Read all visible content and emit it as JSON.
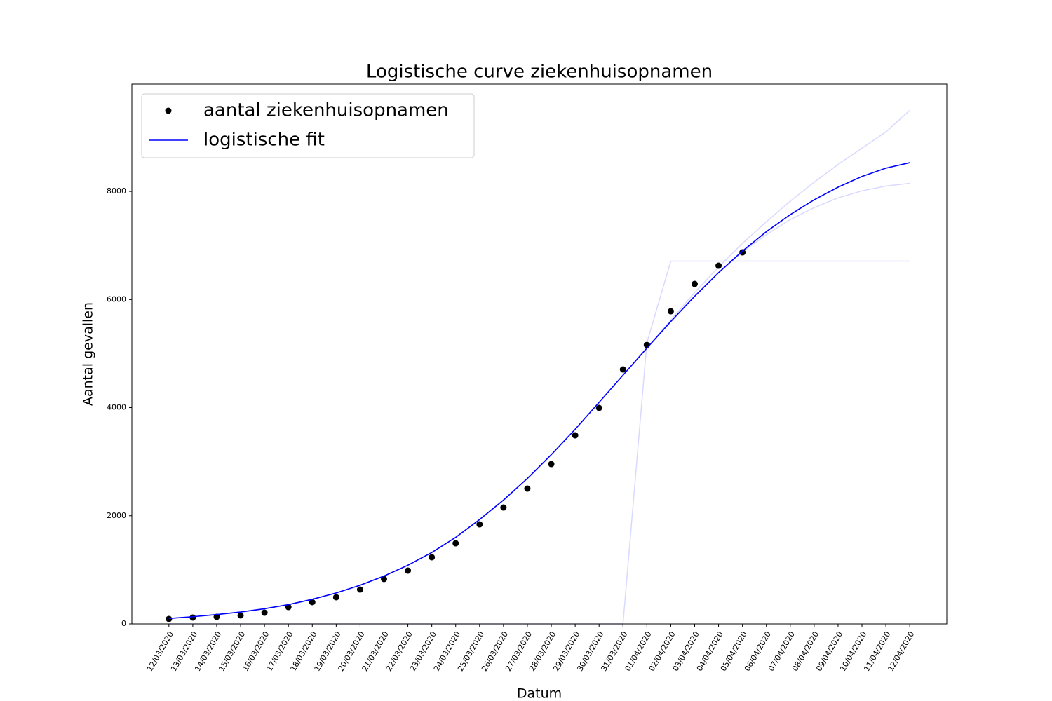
{
  "chart_data": {
    "type": "line",
    "title": "Logistische curve ziekenhuisopnamen",
    "xlabel": "Datum",
    "ylabel": "Aantal gevallen",
    "categories": [
      "12/03/2020",
      "13/03/2020",
      "14/03/2020",
      "15/03/2020",
      "16/03/2020",
      "17/03/2020",
      "18/03/2020",
      "19/03/2020",
      "20/03/2020",
      "21/03/2020",
      "22/03/2020",
      "23/03/2020",
      "24/03/2020",
      "25/03/2020",
      "26/03/2020",
      "27/03/2020",
      "28/03/2020",
      "29/03/2020",
      "30/03/2020",
      "31/03/2020",
      "01/04/2020",
      "02/04/2020",
      "03/04/2020",
      "04/04/2020",
      "05/04/2020",
      "06/04/2020",
      "07/04/2020",
      "08/04/2020",
      "09/04/2020",
      "10/04/2020",
      "11/04/2020",
      "12/04/2020"
    ],
    "series": [
      {
        "name": "aantal ziekenhuisopnamen",
        "color": "#000000",
        "marker": "o",
        "values": [
          91,
          117,
          130,
          156,
          207,
          311,
          402,
          493,
          635,
          830,
          985,
          1232,
          1491,
          1841,
          2152,
          2502,
          2956,
          3488,
          3994,
          4707,
          5160,
          5783,
          6289,
          6626,
          6872,
          null,
          null,
          null,
          null,
          null,
          null,
          null
        ]
      },
      {
        "name": "logistische fit",
        "color": "#0000ff",
        "marker": "line",
        "values": [
          100,
          133,
          173,
          220,
          280,
          356,
          455,
          572,
          715,
          885,
          1085,
          1320,
          1600,
          1930,
          2290,
          2690,
          3130,
          3600,
          4098,
          4600,
          5102,
          5593,
          6061,
          6497,
          6897,
          7256,
          7571,
          7845,
          8079,
          8277,
          8430,
          8532
        ]
      }
    ],
    "fit_ensemble": [
      {
        "color": "#0000ff",
        "values": [
          100,
          133,
          173,
          220,
          280,
          356,
          455,
          572,
          715,
          885,
          1085,
          1320,
          1600,
          1930,
          2290,
          2690,
          3130,
          3600,
          4098,
          4600,
          5102,
          5620,
          6130,
          6600,
          7040,
          7440,
          7820,
          8170,
          8500,
          8800,
          9100,
          9500
        ]
      },
      {
        "color": "#0000ff",
        "values": [
          100,
          133,
          173,
          220,
          280,
          356,
          455,
          572,
          715,
          885,
          1085,
          1320,
          1600,
          1930,
          2290,
          2690,
          3130,
          3600,
          4098,
          4600,
          5102,
          5593,
          6061,
          6497,
          6880,
          7200,
          7480,
          7700,
          7880,
          8010,
          8100,
          8150
        ]
      },
      {
        "color": "#0000ff",
        "values": [
          0,
          0,
          0,
          0,
          0,
          0,
          0,
          0,
          0,
          0,
          0,
          0,
          0,
          0,
          0,
          0,
          0,
          0,
          0,
          0,
          5200,
          6710,
          6710,
          6710,
          6710,
          6710,
          6710,
          6710,
          6710,
          6710,
          6710,
          6710
        ]
      }
    ],
    "ylim": [
      0,
      9985
    ],
    "yticks": [
      0,
      2000,
      4000,
      6000,
      8000
    ],
    "legend": "upper left"
  }
}
